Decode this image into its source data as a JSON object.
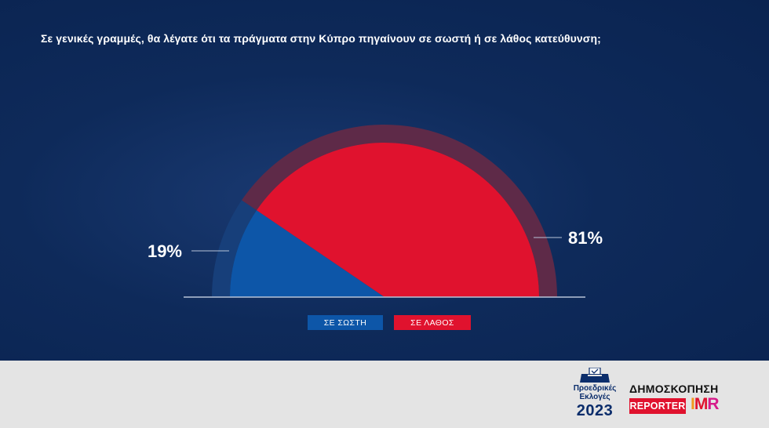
{
  "title": "Σε γενικές γραμμές, θα λέγατε ότι τα πράγματα στην Κύπρο πηγαίνουν σε σωστή ή σε λάθος κατεύθυνση;",
  "chart_data": {
    "type": "pie",
    "variant": "semicircle",
    "categories": [
      "ΣΕ ΣΩΣΤΗ",
      "ΣΕ ΛΑΘΟΣ"
    ],
    "values": [
      19,
      81
    ],
    "value_labels": [
      "19%",
      "81%"
    ],
    "colors": [
      "#0d56a8",
      "#e0122e"
    ],
    "legend_position": "bottom-center"
  },
  "footer": {
    "logo": {
      "line1": "Προεδρικές",
      "line2": "Εκλογές",
      "year": "2023"
    },
    "survey_word": "ΔΗΜΟΣΚΟΠΗΣΗ",
    "reporter": "REPORTER",
    "imr": [
      "I",
      "M",
      "R"
    ]
  },
  "colors": {
    "background": "#0a2350",
    "footer": "#e4e4e4"
  }
}
